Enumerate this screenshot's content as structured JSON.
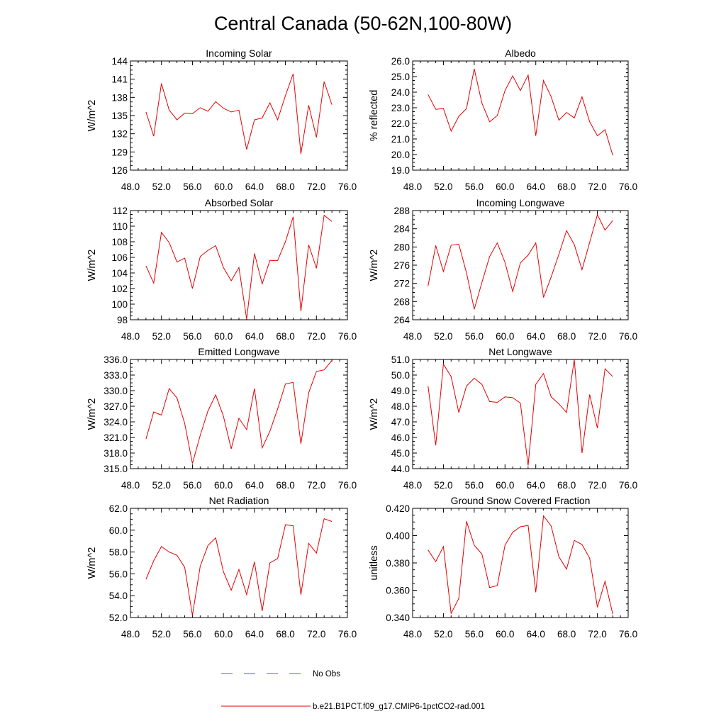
{
  "page": {
    "title": "Central Canada (50-62N,100-80W)"
  },
  "legend": {
    "entries": [
      {
        "label": "No Obs",
        "color": "#5a5adc",
        "style": "dashed"
      },
      {
        "label": "b.e21.B1PCT.f09_g17.CMIP6-1pctCO2-rad.001",
        "color": "#e60000",
        "style": "solid"
      }
    ]
  },
  "chart_data": [
    {
      "type": "line",
      "title": "Incoming Solar",
      "ylabel": "W/m^2",
      "xlim": [
        48,
        76
      ],
      "ylim": [
        126,
        144
      ],
      "xticks": [
        48,
        52,
        56,
        60,
        64,
        68,
        72,
        76
      ],
      "xtick_labels": [
        "48.0",
        "52.0",
        "56.0",
        "60.0",
        "64.0",
        "68.0",
        "72.0",
        "76.0"
      ],
      "yticks": [
        126,
        129,
        132,
        135,
        138,
        141,
        144
      ],
      "ytick_labels": [
        "126",
        "129",
        "132",
        "135",
        "138",
        "141",
        "144"
      ],
      "series": [
        {
          "name": "b.e21.B1PCT.f09_g17.CMIP6-1pctCO2-rad.001",
          "color": "#e60000",
          "x": [
            50,
            51,
            52,
            53,
            54,
            55,
            56,
            57,
            58,
            59,
            60,
            61,
            62,
            63,
            64,
            65,
            66,
            67,
            68,
            69,
            70,
            71,
            72,
            73,
            74
          ],
          "y": [
            135.6,
            131.6,
            140.3,
            135.9,
            134.3,
            135.4,
            135.3,
            136.3,
            135.7,
            137.3,
            136.2,
            135.6,
            135.9,
            129.4,
            134.3,
            134.6,
            137.1,
            134.3,
            138.3,
            141.9,
            128.7,
            136.7,
            131.4,
            140.6,
            136.8
          ]
        }
      ]
    },
    {
      "type": "line",
      "title": "Albedo",
      "ylabel": "% reflected",
      "xlim": [
        48,
        76
      ],
      "ylim": [
        19,
        26
      ],
      "xticks": [
        48,
        52,
        56,
        60,
        64,
        68,
        72,
        76
      ],
      "xtick_labels": [
        "48.0",
        "52.0",
        "56.0",
        "60.0",
        "64.0",
        "68.0",
        "72.0",
        "76.0"
      ],
      "yticks": [
        19,
        20,
        21,
        22,
        23,
        24,
        25,
        26
      ],
      "ytick_labels": [
        "19.0",
        "20.0",
        "21.0",
        "22.0",
        "23.0",
        "24.0",
        "25.0",
        "26.0"
      ],
      "series": [
        {
          "name": "b.e21.B1PCT.f09_g17.CMIP6-1pctCO2-rad.001",
          "color": "#e60000",
          "x": [
            50,
            51,
            52,
            53,
            54,
            55,
            56,
            57,
            58,
            59,
            60,
            61,
            62,
            63,
            64,
            65,
            66,
            67,
            68,
            69,
            70,
            71,
            72,
            73,
            74
          ],
          "y": [
            23.85,
            22.9,
            22.95,
            21.5,
            22.45,
            22.95,
            25.5,
            23.3,
            22.1,
            22.5,
            24.1,
            25.05,
            24.1,
            25.1,
            21.2,
            24.75,
            23.7,
            22.2,
            22.7,
            22.35,
            23.7,
            22.1,
            21.2,
            21.6,
            19.95
          ]
        }
      ]
    },
    {
      "type": "line",
      "title": "Absorbed Solar",
      "ylabel": "W/m^2",
      "xlim": [
        48,
        76
      ],
      "ylim": [
        98,
        112
      ],
      "xticks": [
        48,
        52,
        56,
        60,
        64,
        68,
        72,
        76
      ],
      "xtick_labels": [
        "48.0",
        "52.0",
        "56.0",
        "60.0",
        "64.0",
        "68.0",
        "72.0",
        "76.0"
      ],
      "yticks": [
        98,
        100,
        102,
        104,
        106,
        108,
        110,
        112
      ],
      "ytick_labels": [
        "98",
        "100",
        "102",
        "104",
        "106",
        "108",
        "110",
        "112"
      ],
      "series": [
        {
          "name": "b.e21.B1PCT.f09_g17.CMIP6-1pctCO2-rad.001",
          "color": "#e60000",
          "x": [
            50,
            51,
            52,
            53,
            54,
            55,
            56,
            57,
            58,
            59,
            60,
            61,
            62,
            63,
            64,
            65,
            66,
            67,
            68,
            69,
            70,
            71,
            72,
            73,
            74
          ],
          "y": [
            104.9,
            102.7,
            109.2,
            107.9,
            105.4,
            105.9,
            102.0,
            106.1,
            106.9,
            107.5,
            104.7,
            103.0,
            104.7,
            98.1,
            106.5,
            102.6,
            105.6,
            105.6,
            108.0,
            111.2,
            99.1,
            107.6,
            104.6,
            111.4,
            110.6
          ]
        }
      ]
    },
    {
      "type": "line",
      "title": "Incoming Longwave",
      "ylabel": "W/m^2",
      "xlim": [
        48,
        76
      ],
      "ylim": [
        264,
        288
      ],
      "xticks": [
        48,
        52,
        56,
        60,
        64,
        68,
        72,
        76
      ],
      "xtick_labels": [
        "48.0",
        "52.0",
        "56.0",
        "60.0",
        "64.0",
        "68.0",
        "72.0",
        "76.0"
      ],
      "yticks": [
        264,
        268,
        272,
        276,
        280,
        284,
        288
      ],
      "ytick_labels": [
        "264",
        "268",
        "272",
        "276",
        "280",
        "284",
        "288"
      ],
      "series": [
        {
          "name": "b.e21.B1PCT.f09_g17.CMIP6-1pctCO2-rad.001",
          "color": "#e60000",
          "x": [
            50,
            51,
            52,
            53,
            54,
            55,
            56,
            57,
            58,
            59,
            60,
            61,
            62,
            63,
            64,
            65,
            66,
            67,
            68,
            69,
            70,
            71,
            72,
            73,
            74
          ],
          "y": [
            271.4,
            280.3,
            274.6,
            280.4,
            280.6,
            274.3,
            266.3,
            272.2,
            277.9,
            280.9,
            276.6,
            270.2,
            276.5,
            278.2,
            280.9,
            268.9,
            273.4,
            278.4,
            283.6,
            280.5,
            275.0,
            281.0,
            287.1,
            283.7,
            285.8
          ]
        }
      ]
    },
    {
      "type": "line",
      "title": "Emitted Longwave",
      "ylabel": "W/m^2",
      "xlim": [
        48,
        76
      ],
      "ylim": [
        315,
        336
      ],
      "xticks": [
        48,
        52,
        56,
        60,
        64,
        68,
        72,
        76
      ],
      "xtick_labels": [
        "48.0",
        "52.0",
        "56.0",
        "60.0",
        "64.0",
        "68.0",
        "72.0",
        "76.0"
      ],
      "yticks": [
        315,
        318,
        321,
        324,
        327,
        330,
        333,
        336
      ],
      "ytick_labels": [
        "315.0",
        "318.0",
        "321.0",
        "324.0",
        "327.0",
        "330.0",
        "333.0",
        "336.0"
      ],
      "series": [
        {
          "name": "b.e21.B1PCT.f09_g17.CMIP6-1pctCO2-rad.001",
          "color": "#e60000",
          "x": [
            50,
            51,
            52,
            53,
            54,
            55,
            56,
            57,
            58,
            59,
            60,
            61,
            62,
            63,
            64,
            65,
            66,
            67,
            68,
            69,
            70,
            71,
            72,
            73,
            74
          ],
          "y": [
            320.7,
            325.9,
            325.3,
            330.4,
            328.6,
            323.7,
            316.0,
            321.4,
            326.1,
            329.2,
            325.1,
            318.8,
            324.7,
            322.5,
            330.4,
            319.0,
            322.2,
            326.5,
            331.3,
            331.6,
            319.8,
            329.6,
            333.7,
            334.0,
            335.8
          ]
        }
      ]
    },
    {
      "type": "line",
      "title": "Net Longwave",
      "ylabel": "W/m^2",
      "xlim": [
        48,
        76
      ],
      "ylim": [
        44,
        51
      ],
      "xticks": [
        48,
        52,
        56,
        60,
        64,
        68,
        72,
        76
      ],
      "xtick_labels": [
        "48.0",
        "52.0",
        "56.0",
        "60.0",
        "64.0",
        "68.0",
        "72.0",
        "76.0"
      ],
      "yticks": [
        44,
        45,
        46,
        47,
        48,
        49,
        50,
        51
      ],
      "ytick_labels": [
        "44.0",
        "45.0",
        "46.0",
        "47.0",
        "48.0",
        "49.0",
        "50.0",
        "51.0"
      ],
      "series": [
        {
          "name": "b.e21.B1PCT.f09_g17.CMIP6-1pctCO2-rad.001",
          "color": "#e60000",
          "x": [
            50,
            51,
            52,
            53,
            54,
            55,
            56,
            57,
            58,
            59,
            60,
            61,
            62,
            63,
            64,
            65,
            66,
            67,
            68,
            69,
            70,
            71,
            72,
            73,
            74
          ],
          "y": [
            49.3,
            45.5,
            50.7,
            49.9,
            47.6,
            49.3,
            49.8,
            49.4,
            48.3,
            48.25,
            48.6,
            48.55,
            48.2,
            44.2,
            49.4,
            50.1,
            48.6,
            48.15,
            47.6,
            51.0,
            45.0,
            48.75,
            46.6,
            50.4,
            49.9
          ]
        }
      ]
    },
    {
      "type": "line",
      "title": "Net Radiation",
      "ylabel": "W/m^2",
      "xlim": [
        48,
        76
      ],
      "ylim": [
        52,
        62
      ],
      "xticks": [
        48,
        52,
        56,
        60,
        64,
        68,
        72,
        76
      ],
      "xtick_labels": [
        "48.0",
        "52.0",
        "56.0",
        "60.0",
        "64.0",
        "68.0",
        "72.0",
        "76.0"
      ],
      "yticks": [
        52,
        54,
        56,
        58,
        60,
        62
      ],
      "ytick_labels": [
        "52.0",
        "54.0",
        "56.0",
        "58.0",
        "60.0",
        "62.0"
      ],
      "series": [
        {
          "name": "b.e21.B1PCT.f09_g17.CMIP6-1pctCO2-rad.001",
          "color": "#e60000",
          "x": [
            50,
            51,
            52,
            53,
            54,
            55,
            56,
            57,
            58,
            59,
            60,
            61,
            62,
            63,
            64,
            65,
            66,
            67,
            68,
            69,
            70,
            71,
            72,
            73,
            74
          ],
          "y": [
            55.5,
            57.2,
            58.5,
            58.0,
            57.7,
            56.6,
            52.2,
            56.7,
            58.6,
            59.3,
            56.2,
            54.5,
            56.4,
            54.1,
            57.1,
            52.6,
            57.0,
            57.4,
            60.5,
            60.4,
            54.1,
            58.8,
            57.9,
            61.05,
            60.8
          ]
        }
      ]
    },
    {
      "type": "line",
      "title": "Ground Snow Covered Fraction",
      "ylabel": "unitless",
      "xlim": [
        48,
        76
      ],
      "ylim": [
        0.34,
        0.42
      ],
      "xticks": [
        48,
        52,
        56,
        60,
        64,
        68,
        72,
        76
      ],
      "xtick_labels": [
        "48.0",
        "52.0",
        "56.0",
        "60.0",
        "64.0",
        "68.0",
        "72.0",
        "76.0"
      ],
      "yticks": [
        0.34,
        0.36,
        0.38,
        0.4,
        0.42
      ],
      "ytick_labels": [
        "0.340",
        "0.360",
        "0.380",
        "0.400",
        "0.420"
      ],
      "series": [
        {
          "name": "b.e21.B1PCT.f09_g17.CMIP6-1pctCO2-rad.001",
          "color": "#e60000",
          "x": [
            50,
            51,
            52,
            53,
            54,
            55,
            56,
            57,
            58,
            59,
            60,
            61,
            62,
            63,
            64,
            65,
            66,
            67,
            68,
            69,
            70,
            71,
            72,
            73,
            74
          ],
          "y": [
            0.3895,
            0.381,
            0.392,
            0.343,
            0.354,
            0.4105,
            0.393,
            0.3865,
            0.362,
            0.3635,
            0.393,
            0.4025,
            0.4065,
            0.4075,
            0.3585,
            0.4145,
            0.407,
            0.3845,
            0.3755,
            0.3965,
            0.3935,
            0.3835,
            0.3475,
            0.3665,
            0.3425
          ]
        }
      ]
    }
  ]
}
